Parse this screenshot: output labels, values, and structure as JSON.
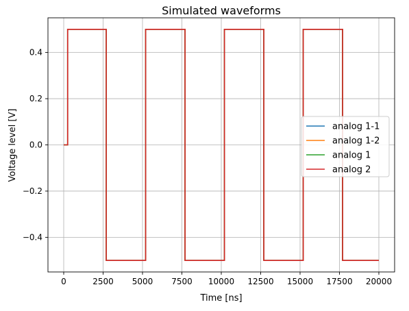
{
  "chart_data": {
    "type": "line",
    "title": "Simulated waveforms",
    "xlabel": "Time [ns]",
    "ylabel": "Voltage level [V]",
    "xlim": [
      -1000,
      21000
    ],
    "ylim": [
      -0.55,
      0.55
    ],
    "xticks": [
      0,
      2500,
      5000,
      7500,
      10000,
      12500,
      15000,
      17500,
      20000
    ],
    "xtick_labels": [
      "0",
      "2500",
      "5000",
      "7500",
      "10000",
      "12500",
      "15000",
      "17500",
      "20000"
    ],
    "yticks": [
      0.4,
      0.2,
      0.0,
      -0.2,
      -0.4
    ],
    "ytick_labels": [
      "0.4",
      "0.2",
      "0.0",
      "−0.2",
      "−0.4"
    ],
    "grid": true,
    "legend_position": "center-right",
    "series": [
      {
        "name": "analog 1-1",
        "color": "#1f77b4",
        "x": [
          0,
          250,
          250,
          2700,
          2700,
          5200,
          5200,
          7700,
          7700,
          10200,
          10200,
          12700,
          12700,
          15200,
          15200,
          17700,
          17700,
          20000
        ],
        "y": [
          0,
          0,
          0.5,
          0.5,
          -0.5,
          -0.5,
          0.5,
          0.5,
          -0.5,
          -0.5,
          0.5,
          0.5,
          -0.5,
          -0.5,
          0.5,
          0.5,
          -0.5,
          -0.5
        ]
      },
      {
        "name": "analog 1-2",
        "color": "#ff7f0e",
        "x": [
          0,
          250,
          250,
          2700,
          2700,
          5200,
          5200,
          7700,
          7700,
          10200,
          10200,
          12700,
          12700,
          15200,
          15200,
          17700,
          17700,
          20000
        ],
        "y": [
          0,
          0,
          0.5,
          0.5,
          -0.5,
          -0.5,
          0.5,
          0.5,
          -0.5,
          -0.5,
          0.5,
          0.5,
          -0.5,
          -0.5,
          0.5,
          0.5,
          -0.5,
          -0.5
        ]
      },
      {
        "name": "analog 1",
        "color": "#2ca02c",
        "x": [
          0,
          250,
          250,
          2700,
          2700,
          5200,
          5200,
          7700,
          7700,
          10200,
          10200,
          12700,
          12700,
          15200,
          15200,
          17700,
          17700,
          20000
        ],
        "y": [
          0,
          0,
          0.5,
          0.5,
          -0.5,
          -0.5,
          0.5,
          0.5,
          -0.5,
          -0.5,
          0.5,
          0.5,
          -0.5,
          -0.5,
          0.5,
          0.5,
          -0.5,
          -0.5
        ]
      },
      {
        "name": "analog 2",
        "color": "#d62728",
        "x": [
          0,
          250,
          250,
          2700,
          2700,
          5200,
          5200,
          7700,
          7700,
          10200,
          10200,
          12700,
          12700,
          15200,
          15200,
          17700,
          17700,
          20000
        ],
        "y": [
          0,
          0,
          0.5,
          0.5,
          -0.5,
          -0.5,
          0.5,
          0.5,
          -0.5,
          -0.5,
          0.5,
          0.5,
          -0.5,
          -0.5,
          0.5,
          0.5,
          -0.5,
          -0.5
        ]
      }
    ]
  }
}
